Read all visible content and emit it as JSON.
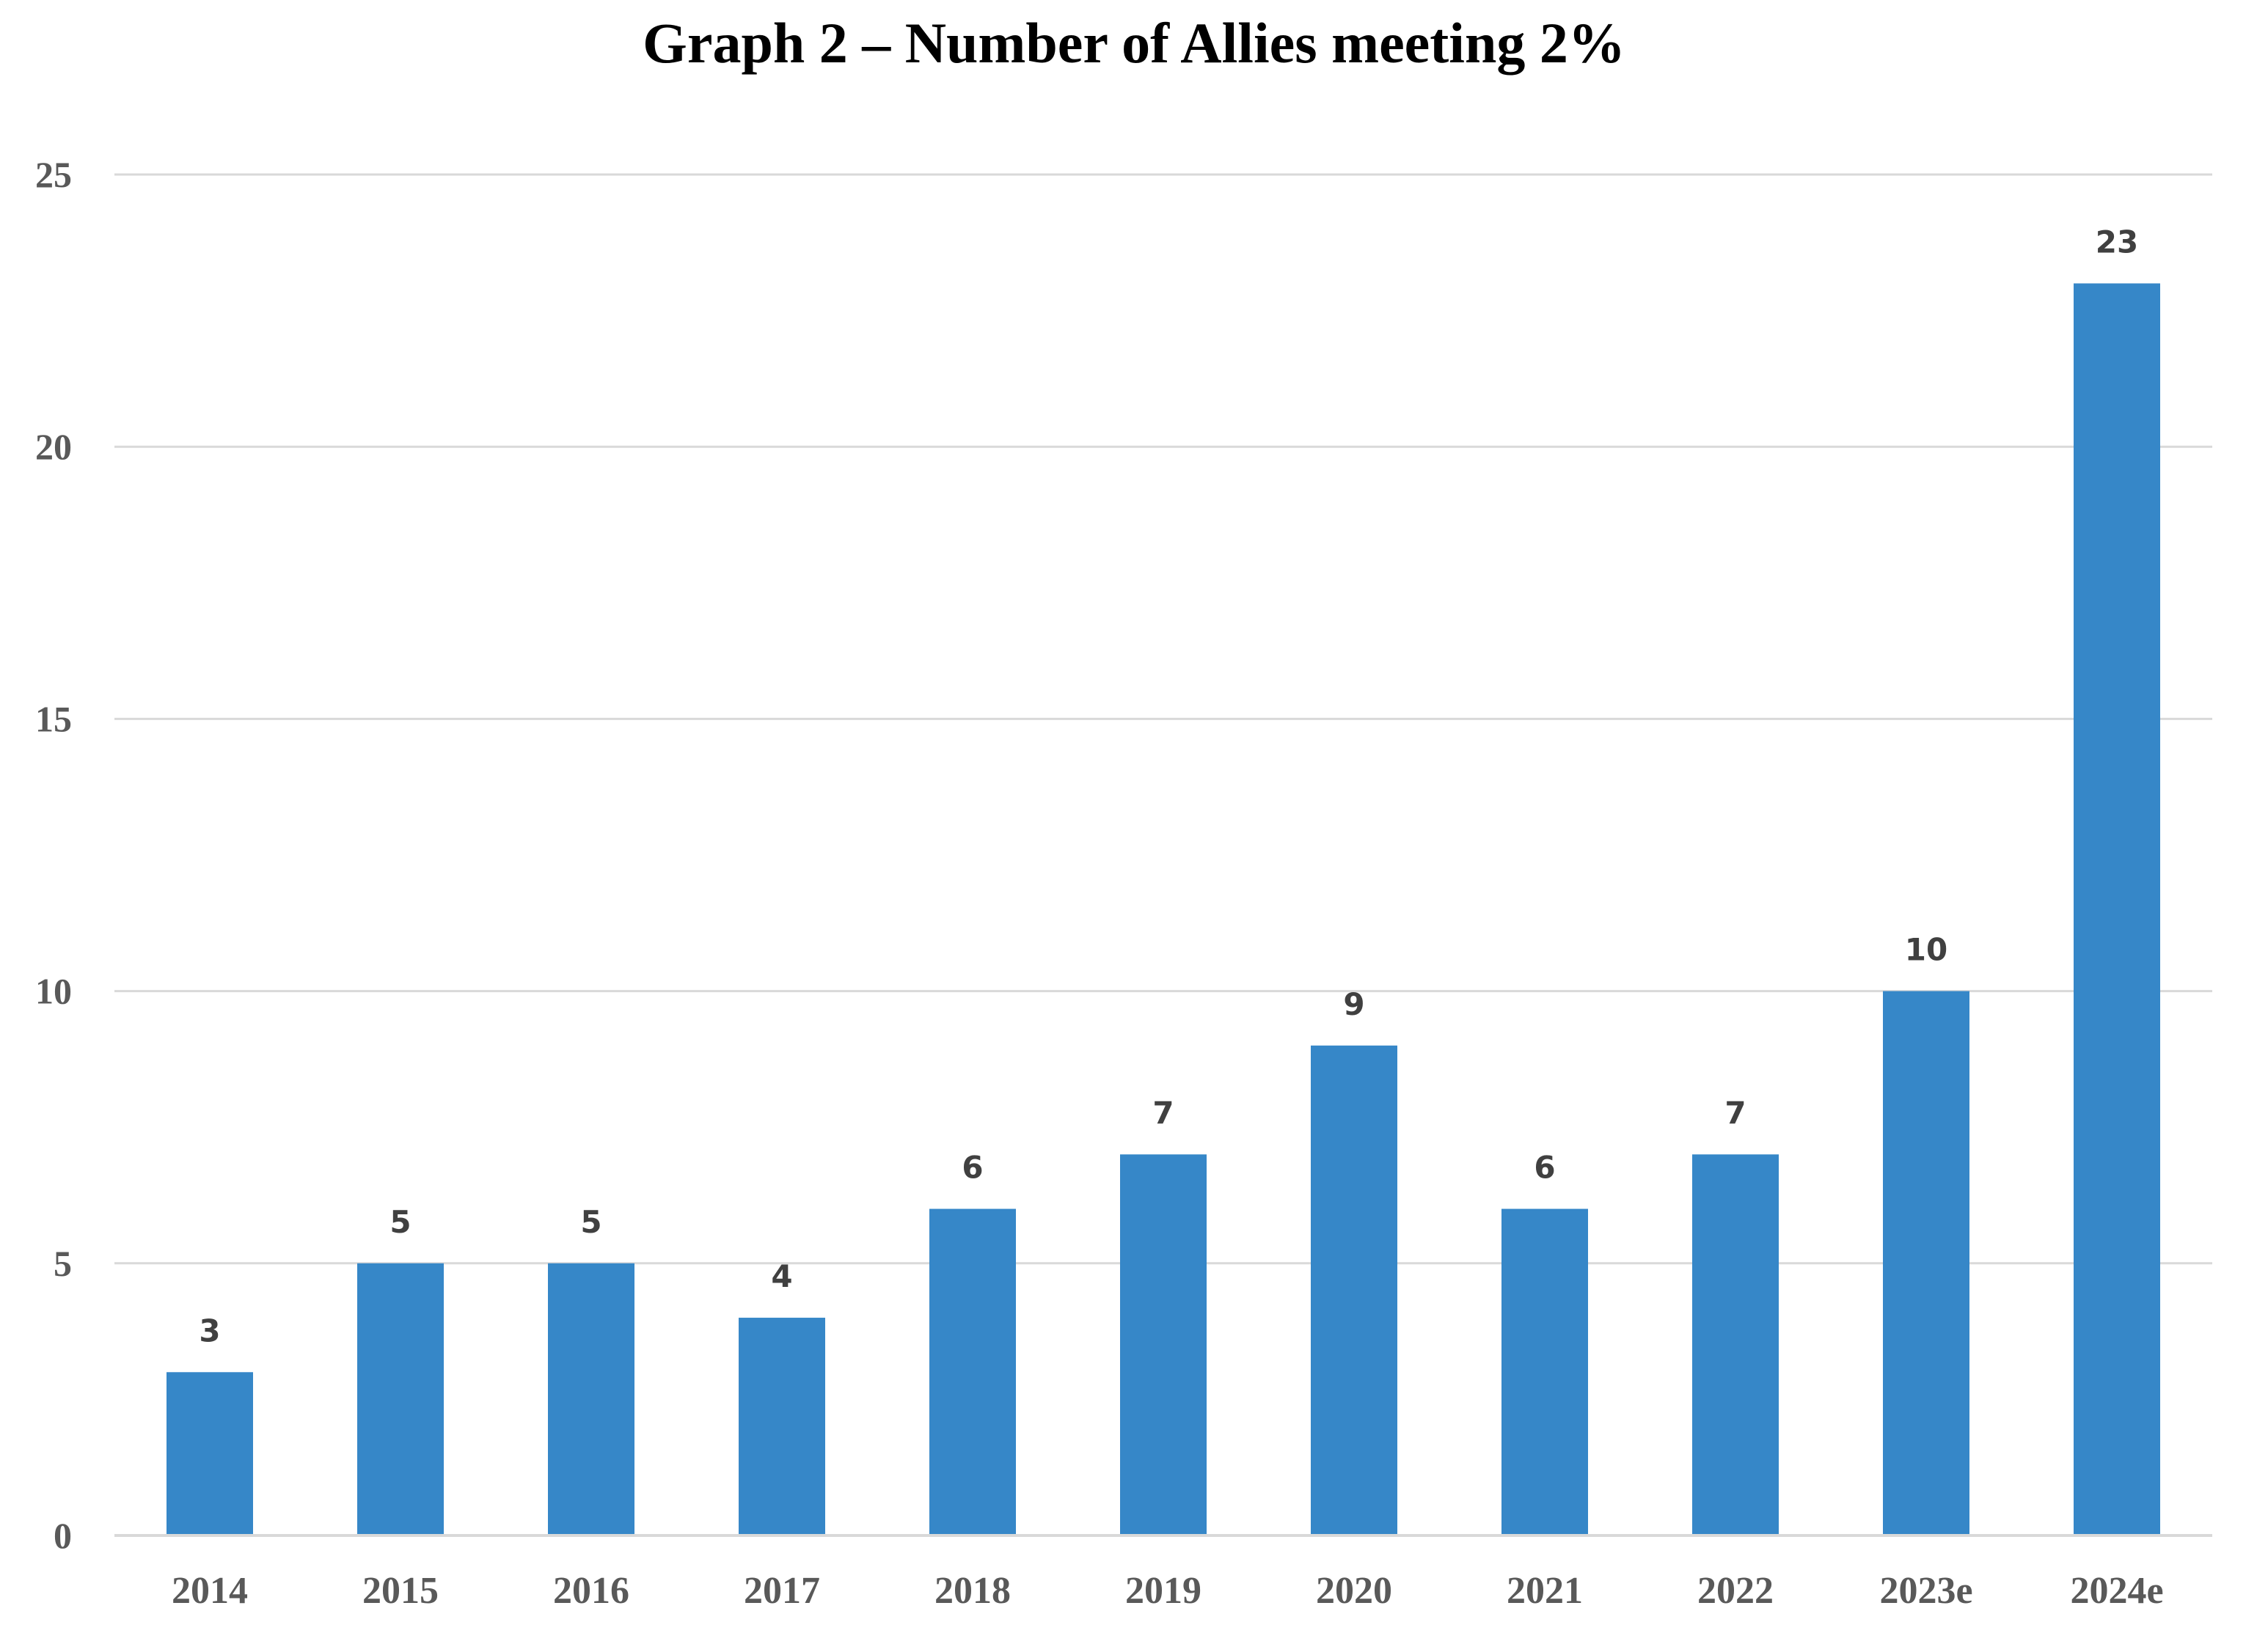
{
  "chart_data": {
    "type": "bar",
    "title": "Graph 2 – Number of Allies meeting 2%",
    "xlabel": "",
    "ylabel": "",
    "categories": [
      "2014",
      "2015",
      "2016",
      "2017",
      "2018",
      "2019",
      "2020",
      "2021",
      "2022",
      "2023e",
      "2024e"
    ],
    "values": [
      3,
      5,
      5,
      4,
      6,
      7,
      9,
      6,
      7,
      10,
      23
    ],
    "ylim": [
      0,
      25
    ],
    "yticks": [
      0,
      5,
      10,
      15,
      20,
      25
    ],
    "grid": true,
    "legend": "none",
    "bar_color": "#3687C8",
    "grid_color": "#D9D9D9",
    "data_labels": true
  }
}
